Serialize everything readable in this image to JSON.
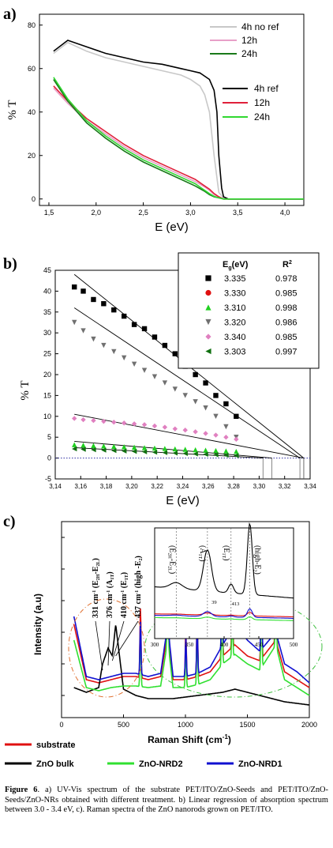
{
  "chart_data": [
    {
      "type": "line",
      "panel_label": "a)",
      "xlabel": "E (eV)",
      "ylabel": "% T",
      "xlim": [
        1.4,
        4.2
      ],
      "ylim": [
        -3,
        85
      ],
      "xticks": [
        "1,5",
        "2,0",
        "2,5",
        "3,0",
        "3,5",
        "4,0"
      ],
      "xtick_values": [
        1.5,
        2.0,
        2.5,
        3.0,
        3.5,
        4.0
      ],
      "yticks": [
        "0",
        "20",
        "40",
        "60",
        "80"
      ],
      "ytick_values": [
        0,
        20,
        40,
        60,
        80
      ],
      "legend": [
        {
          "group": "upper",
          "label": "4h no ref",
          "color": "#c8c8c8"
        },
        {
          "group": "upper",
          "label": "12h",
          "color": "#e8a0c8"
        },
        {
          "group": "upper",
          "label": "24h",
          "color": "#1a7a1a"
        },
        {
          "group": "lower",
          "label": "4h ref",
          "color": "#000000"
        },
        {
          "group": "lower",
          "label": "12h",
          "color": "#e0203a"
        },
        {
          "group": "lower",
          "label": "24h",
          "color": "#30d830"
        }
      ],
      "series": [
        {
          "label": "4h no ref",
          "color": "#c8c8c8",
          "x": [
            1.55,
            1.7,
            1.9,
            2.1,
            2.3,
            2.5,
            2.7,
            2.9,
            3.0,
            3.1,
            3.15,
            3.2,
            3.25,
            3.3,
            3.35,
            3.4,
            3.5,
            4.2
          ],
          "y": [
            67,
            72,
            68,
            65,
            63,
            61,
            59,
            57,
            55,
            52,
            48,
            40,
            20,
            3,
            0.5,
            0,
            0,
            0
          ]
        },
        {
          "label": "4h ref",
          "color": "#000000",
          "x": [
            1.55,
            1.7,
            1.9,
            2.1,
            2.3,
            2.5,
            2.7,
            2.9,
            3.0,
            3.1,
            3.2,
            3.25,
            3.28,
            3.3,
            3.33,
            3.35,
            3.4,
            3.5,
            4.2
          ],
          "y": [
            68,
            73,
            70,
            67,
            65,
            63,
            62,
            60,
            59,
            58,
            55,
            50,
            40,
            20,
            5,
            1,
            0,
            0,
            0
          ]
        },
        {
          "label": "12h (upper)",
          "color": "#e8a0c8",
          "x": [
            1.55,
            1.7,
            1.9,
            2.1,
            2.3,
            2.5,
            2.7,
            2.9,
            3.05,
            3.15,
            3.2,
            3.25,
            3.3,
            3.35,
            4.2
          ],
          "y": [
            51,
            44,
            36,
            30,
            24,
            19,
            15,
            11,
            8,
            5.5,
            4,
            2,
            1,
            0,
            0
          ]
        },
        {
          "label": "12h (lower)",
          "color": "#e0203a",
          "x": [
            1.55,
            1.7,
            1.9,
            2.1,
            2.3,
            2.5,
            2.7,
            2.9,
            3.05,
            3.15,
            3.2,
            3.25,
            3.3,
            3.35,
            4.2
          ],
          "y": [
            52,
            45,
            37,
            31,
            25,
            20,
            16,
            12,
            9,
            6,
            4.5,
            2.5,
            1,
            0,
            0
          ]
        },
        {
          "label": "24h (upper)",
          "color": "#1a7a1a",
          "x": [
            1.55,
            1.7,
            1.9,
            2.1,
            2.3,
            2.5,
            2.7,
            2.9,
            3.05,
            3.15,
            3.2,
            3.25,
            3.3,
            3.35,
            4.2
          ],
          "y": [
            55,
            45,
            35,
            28,
            22,
            17,
            13,
            9,
            6,
            3.5,
            2,
            1,
            0.5,
            0,
            0
          ]
        },
        {
          "label": "24h (lower)",
          "color": "#30d830",
          "x": [
            1.55,
            1.7,
            1.9,
            2.1,
            2.3,
            2.5,
            2.7,
            2.9,
            3.05,
            3.15,
            3.2,
            3.25,
            3.3,
            3.35,
            4.2
          ],
          "y": [
            56,
            46,
            36,
            29,
            23,
            18,
            14,
            10,
            7,
            4,
            2.5,
            1.2,
            0.5,
            0,
            0
          ]
        }
      ]
    },
    {
      "type": "scatter",
      "panel_label": "b)",
      "xlabel": "E (eV)",
      "ylabel": "% T",
      "xlim": [
        3.14,
        3.34
      ],
      "ylim": [
        -5,
        45
      ],
      "xticks": [
        "3,14",
        "3,16",
        "3,18",
        "3,20",
        "3,22",
        "3,24",
        "3,26",
        "3,28",
        "3,30",
        "3,32",
        "3,34"
      ],
      "xtick_values": [
        3.14,
        3.16,
        3.18,
        3.2,
        3.22,
        3.24,
        3.26,
        3.28,
        3.3,
        3.32,
        3.34
      ],
      "yticks": [
        "-5",
        "0",
        "5",
        "10",
        "15",
        "20",
        "25",
        "30",
        "35",
        "40",
        "45"
      ],
      "ytick_values": [
        -5,
        0,
        5,
        10,
        15,
        20,
        25,
        30,
        35,
        40,
        45
      ],
      "table": {
        "header_eg": "E",
        "header_eg_sub": "g",
        "header_eg_unit": "(eV)",
        "header_r": "R",
        "header_r_sup": "2",
        "rows": [
          {
            "marker": "square",
            "color": "#000000",
            "eg": "3.335",
            "r2": "0.978"
          },
          {
            "marker": "circle",
            "color": "#e01010",
            "eg": "3.330",
            "r2": "0.985"
          },
          {
            "marker": "triangle-up",
            "color": "#20d020",
            "eg": "3.310",
            "r2": "0.998"
          },
          {
            "marker": "triangle-down",
            "color": "#707070",
            "eg": "3.320",
            "r2": "0.986"
          },
          {
            "marker": "diamond",
            "color": "#e080c0",
            "eg": "3.340",
            "r2": "0.985"
          },
          {
            "marker": "triangle-left",
            "color": "#107010",
            "eg": "3.303",
            "r2": "0.997"
          }
        ]
      },
      "series": [
        {
          "marker": "square",
          "color": "#000000",
          "x": [
            3.155,
            3.162,
            3.17,
            3.178,
            3.186,
            3.194,
            3.202,
            3.21,
            3.218,
            3.226,
            3.234,
            3.242,
            3.25,
            3.258,
            3.266,
            3.274,
            3.282
          ],
          "y": [
            41,
            40,
            38,
            37,
            35.5,
            34,
            32,
            31,
            29,
            27,
            25,
            22,
            20,
            18,
            15,
            13,
            10
          ]
        },
        {
          "marker": "triangle-down",
          "color": "#707070",
          "x": [
            3.155,
            3.162,
            3.17,
            3.178,
            3.186,
            3.194,
            3.202,
            3.21,
            3.218,
            3.226,
            3.234,
            3.242,
            3.25,
            3.258,
            3.266,
            3.274,
            3.282
          ],
          "y": [
            32.5,
            30.5,
            28.5,
            27,
            25.5,
            24,
            22.5,
            21,
            19.5,
            18,
            16.5,
            15,
            13.5,
            12,
            10,
            7.5,
            5
          ]
        },
        {
          "marker": "diamond",
          "color": "#e080c0",
          "x": [
            3.155,
            3.162,
            3.17,
            3.178,
            3.186,
            3.194,
            3.202,
            3.21,
            3.218,
            3.226,
            3.234,
            3.242,
            3.25,
            3.258,
            3.266,
            3.274,
            3.282
          ],
          "y": [
            9.5,
            9.2,
            9,
            8.8,
            8.6,
            8.4,
            8.2,
            8,
            7.7,
            7.4,
            7,
            6.7,
            6.3,
            5.9,
            5.5,
            5,
            4.5
          ]
        },
        {
          "marker": "triangle-up",
          "color": "#20d020",
          "x": [
            3.155,
            3.162,
            3.17,
            3.178,
            3.186,
            3.194,
            3.202,
            3.21,
            3.218,
            3.226,
            3.234,
            3.242,
            3.25,
            3.258,
            3.266,
            3.274,
            3.282
          ],
          "y": [
            3.2,
            3.1,
            3,
            2.9,
            2.8,
            2.7,
            2.6,
            2.5,
            2.4,
            2.3,
            2.2,
            2.1,
            2,
            1.9,
            1.8,
            1.7,
            1.6
          ]
        },
        {
          "marker": "triangle-left",
          "color": "#107010",
          "x": [
            3.155,
            3.162,
            3.17,
            3.178,
            3.186,
            3.194,
            3.202,
            3.21,
            3.218,
            3.226,
            3.234,
            3.242,
            3.25,
            3.258,
            3.266,
            3.274,
            3.282
          ],
          "y": [
            2.2,
            2.1,
            2,
            1.9,
            1.8,
            1.7,
            1.6,
            1.5,
            1.4,
            1.3,
            1.2,
            1.1,
            1,
            0.9,
            0.8,
            0.7,
            0.6
          ]
        }
      ],
      "fit_lines": [
        {
          "x": [
            3.155,
            3.335
          ],
          "y": [
            44,
            0
          ]
        },
        {
          "x": [
            3.155,
            3.332
          ],
          "y": [
            36,
            0
          ]
        },
        {
          "x": [
            3.155,
            3.335
          ],
          "y": [
            10.5,
            0
          ]
        },
        {
          "x": [
            3.155,
            3.31
          ],
          "y": [
            4,
            0
          ]
        },
        {
          "x": [
            3.155,
            3.303
          ],
          "y": [
            2.5,
            0
          ]
        }
      ],
      "baseline": 0
    },
    {
      "type": "line",
      "panel_label": "c)",
      "xlabel": "Raman Shift (cm",
      "xlabel_sup": "-1",
      "xlabel_end": ")",
      "ylabel": "Intensity (a.u)",
      "xlim": [
        0,
        2000
      ],
      "xticks": [
        "0",
        "500",
        "1000",
        "1500",
        "2000"
      ],
      "xtick_values": [
        0,
        500,
        1000,
        1500,
        2000
      ],
      "peak_annotations": [
        {
          "value": "331 cm",
          "sup": "-1",
          "tail": " (E",
          "sub": "2H",
          "tail2": "-E",
          "sub2": "2L",
          "end": ")"
        },
        {
          "value": "376 cm",
          "sup": "-1",
          "tail": " (A",
          "sub": "1T",
          "tail2": "",
          "sub2": "",
          "end": ")"
        },
        {
          "value": "410 cm",
          "sup": "-1",
          "tail": " (E",
          "sub": "1T",
          "tail2": "",
          "sub2": "",
          "end": ")"
        },
        {
          "value": "437 cm",
          "sup": "-1",
          "tail": " (high -E",
          "sub": "2",
          "tail2": "",
          "sub2": "",
          "end": ")"
        }
      ],
      "inset": {
        "xlim": [
          300,
          500
        ],
        "xticks": [
          "300",
          "350",
          "400",
          "450",
          "500"
        ],
        "xtick_values": [
          300,
          350,
          400,
          450,
          500
        ],
        "labels": [
          {
            "text": "(E",
            "sub": "2H",
            "mid": "-E",
            "sub2": "2L",
            "end": ")"
          },
          {
            "text": "(A",
            "sub": "1T",
            "mid": "",
            "sub2": "",
            "end": ")"
          },
          {
            "text": "(E",
            "sub": "1T",
            "mid": "",
            "sub2": "",
            "end": ")"
          },
          {
            "text": "(high-E",
            "sub": "2",
            "mid": "",
            "sub2": "",
            "end": ")"
          }
        ],
        "notes": [
          "39",
          "413"
        ]
      },
      "legend": [
        {
          "label": "substrate",
          "color": "#e01010"
        },
        {
          "label": "ZnO bulk",
          "color": "#000000"
        },
        {
          "label": "ZnO-NRD2",
          "color": "#30e030"
        },
        {
          "label": "ZnO-NRD1",
          "color": "#1010d0"
        }
      ],
      "series": [
        {
          "label": "substrate",
          "color": "#e01010",
          "x": [
            100,
            200,
            300,
            400,
            500,
            600,
            700,
            800,
            857,
            900,
            1000,
            1100,
            1200,
            1300,
            1400,
            1500,
            1600,
            1730,
            1800,
            1900,
            2000
          ],
          "y": [
            0.55,
            0.2,
            0.18,
            0.2,
            0.22,
            0.22,
            0.2,
            0.22,
            0.5,
            0.2,
            0.2,
            0.22,
            0.25,
            0.35,
            0.42,
            0.35,
            0.32,
            0.45,
            0.25,
            0.2,
            0.15
          ]
        },
        {
          "label": "ZnO bulk",
          "color": "#000000",
          "x": [
            100,
            200,
            300,
            331,
            376,
            410,
            437,
            500,
            600,
            700,
            800,
            900,
            1000,
            1100,
            1200,
            1300,
            1400,
            1500,
            1600,
            1700,
            1800,
            1900,
            2000
          ],
          "y": [
            0.15,
            0.12,
            0.15,
            0.3,
            0.4,
            0.35,
            0.55,
            0.14,
            0.1,
            0.08,
            0.08,
            0.08,
            0.09,
            0.1,
            0.11,
            0.12,
            0.14,
            0.12,
            0.1,
            0.08,
            0.06,
            0.05,
            0.04
          ]
        },
        {
          "label": "ZnO-NRD2",
          "color": "#30e030",
          "x": [
            100,
            200,
            300,
            400,
            500,
            600,
            700,
            800,
            857,
            900,
            1000,
            1100,
            1200,
            1300,
            1400,
            1500,
            1600,
            1730,
            1800,
            1900,
            2000
          ],
          "y": [
            0.45,
            0.15,
            0.13,
            0.15,
            0.16,
            0.16,
            0.15,
            0.16,
            0.45,
            0.15,
            0.15,
            0.17,
            0.2,
            0.3,
            0.36,
            0.3,
            0.26,
            0.42,
            0.2,
            0.15,
            0.1
          ]
        },
        {
          "label": "ZnO-NRD1",
          "color": "#1010d0",
          "x": [
            100,
            200,
            300,
            400,
            500,
            600,
            700,
            800,
            857,
            900,
            1000,
            1100,
            1200,
            1300,
            1400,
            1500,
            1600,
            1730,
            1800,
            1900,
            2000
          ],
          "y": [
            0.6,
            0.22,
            0.2,
            0.22,
            0.24,
            0.24,
            0.22,
            0.24,
            0.55,
            0.22,
            0.22,
            0.24,
            0.28,
            0.42,
            0.55,
            0.45,
            0.38,
            0.5,
            0.3,
            0.25,
            0.18
          ]
        }
      ],
      "peaks": [
        {
          "x": 637,
          "h": 0.45
        },
        {
          "x": 857,
          "h": 0.55
        },
        {
          "x": 1003,
          "h": 0.32
        },
        {
          "x": 1095,
          "h": 0.42
        },
        {
          "x": 1295,
          "h": 0.55
        },
        {
          "x": 1378,
          "h": 0.35
        },
        {
          "x": 1613,
          "h": 0.6
        },
        {
          "x": 1730,
          "h": 0.55
        }
      ]
    }
  ],
  "caption": {
    "label": "Figure 6",
    "text": ". a) UV-Vis spectrum of the substrate PET/ITO/ZnO-Seeds and PET/ITO/ZnO-Seeds/ZnO-NRs obtained with different treatment. b) Linear regression of absorption spectrum between 3.0 - 3.4 eV, c). Raman spectra of the ZnO nanorods grown on PET/ITO."
  }
}
